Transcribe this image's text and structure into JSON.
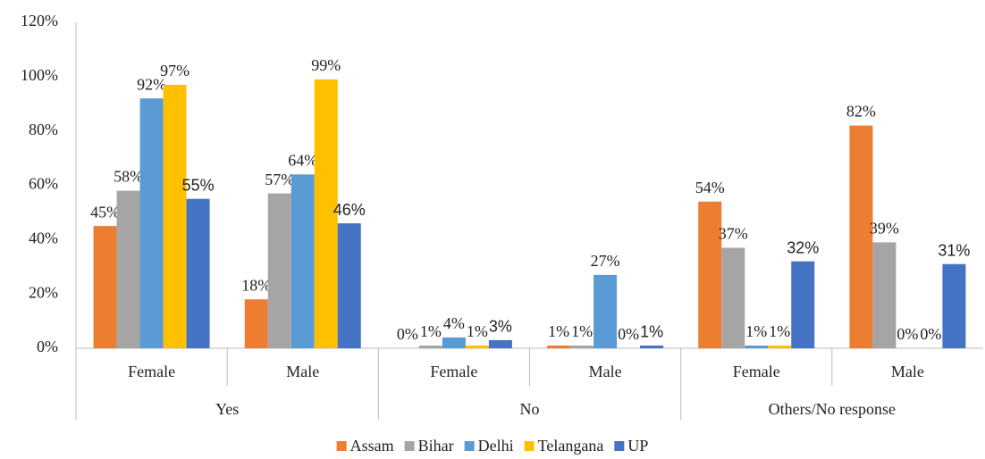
{
  "chart_data": {
    "type": "bar",
    "categories": [
      "Female",
      "Male",
      "Female",
      "Male",
      "Female",
      "Male"
    ],
    "category_groups": [
      "Yes",
      "No",
      "Others/No response"
    ],
    "series": [
      {
        "name": "Assam",
        "color": "#ED7D31",
        "values": [
          45,
          18,
          0,
          1,
          54,
          82
        ],
        "value_labels": [
          "45%",
          "18%",
          "0%",
          "1%",
          "54%",
          "82%"
        ]
      },
      {
        "name": "Bihar",
        "color": "#A5A5A5",
        "values": [
          58,
          57,
          1,
          1,
          37,
          39
        ],
        "value_labels": [
          "58%",
          "57%",
          "1%",
          "1%",
          "37%",
          "39%"
        ]
      },
      {
        "name": "Delhi",
        "color": "#5B9BD5",
        "values": [
          92,
          64,
          4,
          27,
          1,
          0
        ],
        "value_labels": [
          "92%",
          "64%",
          "4%",
          "27%",
          "1%",
          "0%"
        ]
      },
      {
        "name": "Telangana",
        "color": "#FFC000",
        "values": [
          97,
          99,
          1,
          0,
          1,
          0
        ],
        "value_labels": [
          "97%",
          "99%",
          "1%",
          "0%",
          "1%",
          "0%"
        ]
      },
      {
        "name": "UP",
        "color": "#4472C4",
        "values": [
          55,
          46,
          3,
          1,
          32,
          31
        ],
        "value_labels": [
          "55%",
          "46%",
          "3%",
          "1%",
          "32%",
          "31%"
        ]
      }
    ],
    "ylim": [
      0,
      120
    ],
    "yticks": [
      {
        "value": 0,
        "label": "0%"
      },
      {
        "value": 20,
        "label": "20%"
      },
      {
        "value": 40,
        "label": "40%"
      },
      {
        "value": 60,
        "label": "60%"
      },
      {
        "value": 80,
        "label": "80%"
      },
      {
        "value": 100,
        "label": "100%"
      },
      {
        "value": 120,
        "label": "120%"
      }
    ],
    "grid": false,
    "legend": "bottom"
  }
}
